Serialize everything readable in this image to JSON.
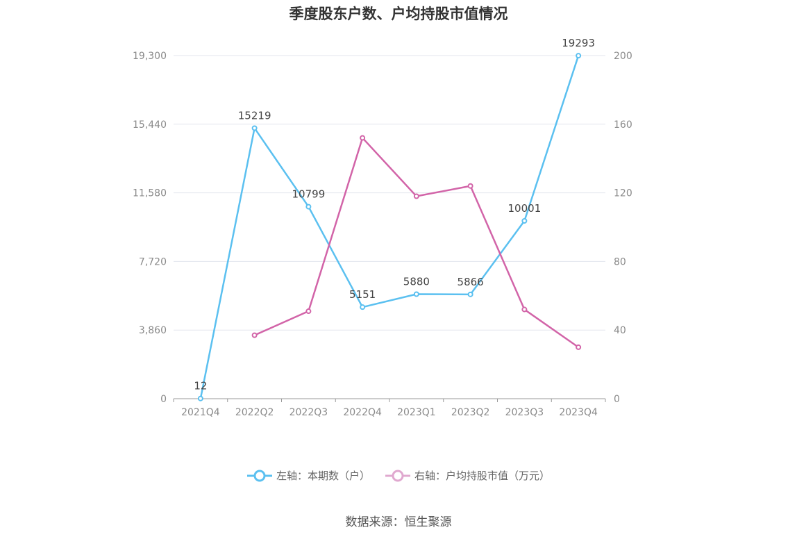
{
  "title": "季度股东户数、户均持股市值情况",
  "source": "数据来源：恒生聚源",
  "colors": {
    "left": "#5bc0f0",
    "right": "#d264a8",
    "grid": "#e3e6ee",
    "axis": "#999999"
  },
  "legend": [
    {
      "label": "左轴：本期数（户）",
      "color": "#5bc0f0"
    },
    {
      "label": "右轴：户均持股市值（万元）",
      "color": "#e0a8cf"
    }
  ],
  "chart_data": {
    "type": "line",
    "categories": [
      "2021Q4",
      "2022Q2",
      "2022Q3",
      "2022Q4",
      "2023Q1",
      "2023Q2",
      "2023Q3",
      "2023Q4"
    ],
    "left_axis": {
      "ticks": [
        0,
        3860,
        7720,
        11580,
        15440,
        19300
      ],
      "tick_labels": [
        "0",
        "3,860",
        "7,720",
        "11,580",
        "15,440",
        "19,300"
      ],
      "ylim": [
        0,
        19300
      ]
    },
    "right_axis": {
      "ticks": [
        0,
        40,
        80,
        120,
        160,
        200
      ],
      "tick_labels": [
        "0",
        "40",
        "80",
        "120",
        "160",
        "200"
      ],
      "ylim": [
        0,
        200
      ]
    },
    "series": [
      {
        "name": "左轴：本期数（户）",
        "axis": "left",
        "values": [
          12,
          15219,
          10799,
          5151,
          5880,
          5866,
          10001,
          19293
        ],
        "labels": [
          "12",
          "15219",
          "10799",
          "5151",
          "5880",
          "5866",
          "10001",
          "19293"
        ]
      },
      {
        "name": "右轴：户均持股市值（万元）",
        "axis": "right",
        "values": [
          null,
          37,
          51,
          152,
          118,
          124,
          52,
          30
        ]
      }
    ]
  }
}
